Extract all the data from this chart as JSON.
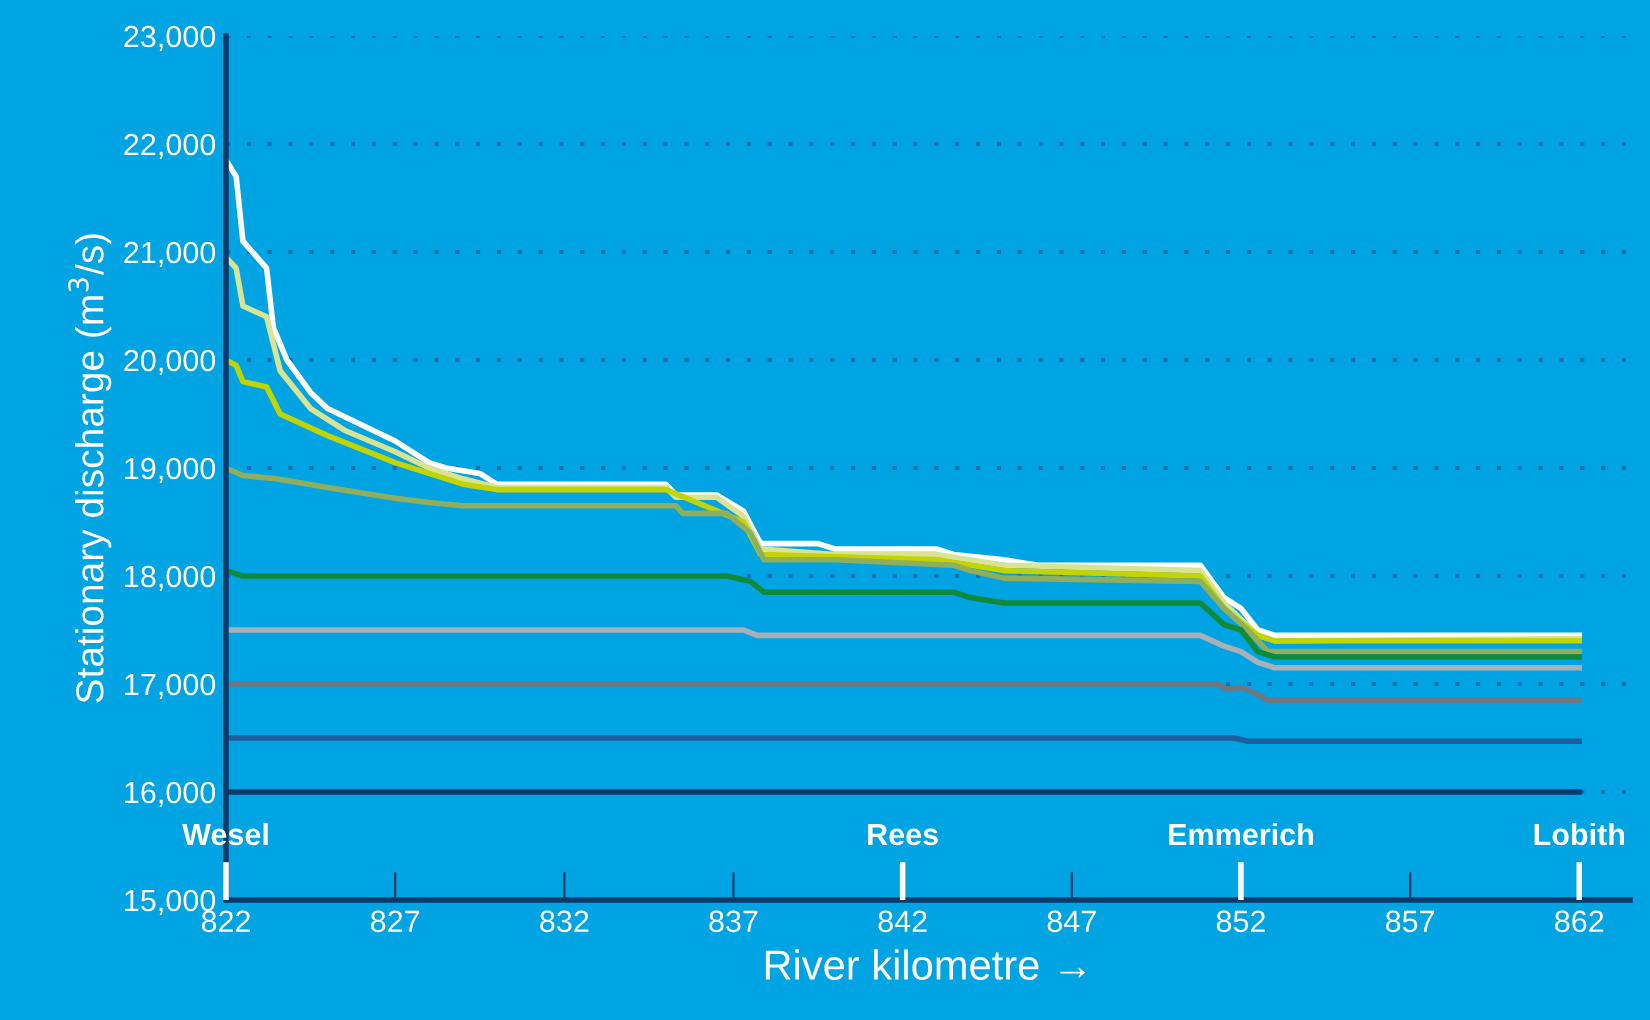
{
  "chart_data": {
    "type": "line",
    "xlabel": "River kilometre →",
    "ylabel": "Stationary discharge (m$^{3}$/s)",
    "xlim": [
      822,
      863.5
    ],
    "ylim": [
      15000,
      23000
    ],
    "xticks": [
      822,
      827,
      832,
      837,
      842,
      847,
      852,
      857,
      862
    ],
    "yticks": [
      {
        "value": 15000,
        "label": "15,000"
      },
      {
        "value": 16000,
        "label": "16,000"
      },
      {
        "value": 17000,
        "label": "17,000"
      },
      {
        "value": 18000,
        "label": "18,000"
      },
      {
        "value": 19000,
        "label": "19,000"
      },
      {
        "value": 20000,
        "label": "20,000"
      },
      {
        "value": 21000,
        "label": "21,000"
      },
      {
        "value": 22000,
        "label": "22,000"
      },
      {
        "value": 23000,
        "label": "23,000"
      }
    ],
    "grid": "y",
    "legend": false,
    "marker": "none",
    "line_style": "solid",
    "ref_lines": [
      {
        "axis": "x",
        "value": 822,
        "label": "Wesel"
      },
      {
        "axis": "x",
        "value": 842,
        "label": "Rees"
      },
      {
        "axis": "x",
        "value": 852,
        "label": "Emmerich"
      },
      {
        "axis": "x",
        "value": 862,
        "label": "Lobith"
      }
    ],
    "series": [
      {
        "color": "#ffffff",
        "x": [
          822,
          822.3,
          822.5,
          823.2,
          823.4,
          823.8,
          824.5,
          825,
          827,
          828,
          828.5,
          829.5,
          830,
          835,
          835.3,
          836.5,
          837.3,
          837.8,
          839.5,
          840,
          843,
          843.5,
          845,
          846,
          850.8,
          851.5,
          852,
          852.5,
          853,
          862
        ],
        "values": [
          21850,
          21700,
          21100,
          20850,
          20300,
          20000,
          19700,
          19550,
          19250,
          19050,
          19000,
          18950,
          18850,
          18850,
          18750,
          18750,
          18600,
          18300,
          18300,
          18250,
          18250,
          18200,
          18150,
          18100,
          18100,
          17800,
          17700,
          17500,
          17450,
          17450
        ]
      },
      {
        "color": "#d8e394",
        "x": [
          822,
          822.3,
          822.5,
          823.2,
          823.6,
          824.5,
          825.5,
          827,
          828,
          829,
          830,
          835,
          835.3,
          836.5,
          837.3,
          837.8,
          840,
          843,
          845,
          850.8,
          851.5,
          852.5,
          853,
          862
        ],
        "values": [
          20950,
          20850,
          20500,
          20400,
          19900,
          19550,
          19350,
          19150,
          19000,
          18900,
          18820,
          18820,
          18730,
          18730,
          18550,
          18250,
          18200,
          18200,
          18100,
          18050,
          17750,
          17450,
          17400,
          17420
        ]
      },
      {
        "color": "#c3d500",
        "x": [
          822,
          822.3,
          822.5,
          823.2,
          823.6,
          825,
          827,
          828,
          829,
          830,
          835,
          837.3,
          837.8,
          843,
          845,
          850.8,
          851.5,
          852.5,
          853,
          862
        ],
        "values": [
          20000,
          19950,
          19800,
          19750,
          19500,
          19300,
          19050,
          18950,
          18850,
          18800,
          18800,
          18500,
          18200,
          18150,
          18050,
          18000,
          17700,
          17450,
          17400,
          17400
        ]
      },
      {
        "color": "#8fae5e",
        "x": [
          822,
          822.5,
          823.5,
          825,
          827,
          828,
          829,
          835.3,
          835.5,
          836.8,
          837.5,
          837.9,
          840,
          843.5,
          844,
          845,
          850.8,
          851.5,
          852.2,
          852.8,
          862
        ],
        "values": [
          19000,
          18930,
          18900,
          18820,
          18720,
          18680,
          18650,
          18650,
          18580,
          18580,
          18400,
          18150,
          18150,
          18100,
          18050,
          17980,
          17950,
          17700,
          17500,
          17300,
          17300
        ]
      },
      {
        "color": "#0f8a3a",
        "x": [
          822,
          822.5,
          836.8,
          837.5,
          837.9,
          843.5,
          844,
          845,
          850.8,
          851.5,
          852,
          852.5,
          853,
          862
        ],
        "values": [
          18050,
          18000,
          18000,
          17950,
          17850,
          17850,
          17800,
          17750,
          17750,
          17550,
          17500,
          17300,
          17250,
          17250
        ]
      },
      {
        "color": "#a9b1b8",
        "x": [
          822,
          837.3,
          837.7,
          850.8,
          851.5,
          852,
          852.5,
          853,
          862
        ],
        "values": [
          17500,
          17500,
          17450,
          17450,
          17350,
          17300,
          17200,
          17150,
          17150
        ]
      },
      {
        "color": "#6f7780",
        "x": [
          822,
          851.3,
          851.6,
          852,
          852.5,
          852.8,
          862
        ],
        "values": [
          17000,
          17000,
          16950,
          16970,
          16900,
          16850,
          16850
        ]
      },
      {
        "color": "#1d5f9e",
        "x": [
          822,
          851.8,
          852.2,
          862
        ],
        "values": [
          16500,
          16500,
          16470,
          16470
        ]
      },
      {
        "color": "#0b3b6b",
        "x": [
          822,
          862
        ],
        "values": [
          16000,
          16000
        ]
      }
    ]
  }
}
